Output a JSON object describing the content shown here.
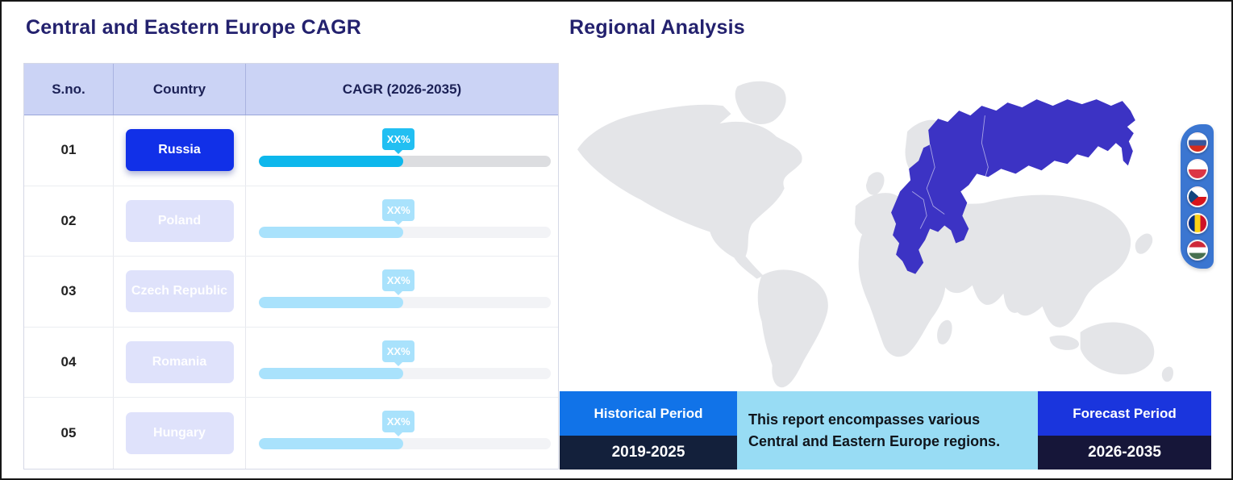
{
  "left_panel": {
    "title": "Central and Eastern Europe CAGR",
    "table": {
      "headers": [
        "S.no.",
        "Country",
        "CAGR (2026-2035)"
      ],
      "rows": [
        {
          "sno": "01",
          "country": "Russia",
          "value_label": "XX%",
          "state": "active"
        },
        {
          "sno": "02",
          "country": "Poland",
          "value_label": "XX%",
          "state": "inactive"
        },
        {
          "sno": "03",
          "country": "Czech Republic",
          "value_label": "XX%",
          "state": "inactive"
        },
        {
          "sno": "04",
          "country": "Romania",
          "value_label": "XX%",
          "state": "inactive"
        },
        {
          "sno": "05",
          "country": "Hungary",
          "value_label": "XX%",
          "state": "inactive"
        }
      ]
    }
  },
  "right_panel": {
    "title": "Regional Analysis",
    "map": {
      "highlighted_region": "Central and Eastern Europe (incl. Russia)",
      "land_color": "#e4e5e8",
      "highlight_color": "#3c33c4"
    },
    "flags_bar": {
      "background": "#3b76d1",
      "flags": [
        "Russia",
        "Poland",
        "Czech Republic",
        "Romania",
        "Hungary"
      ]
    },
    "bottom_bar": {
      "historical_label": "Historical Period",
      "historical_period": "2019-2025",
      "note": "This report encompasses various Central and Eastern Europe regions.",
      "forecast_label": "Forecast Period",
      "forecast_period": "2026-2035"
    }
  },
  "colors": {
    "title_text": "#23216e",
    "table_header_bg": "#cbd3f5",
    "table_header_text": "#1c2156",
    "active_button_bg": "#1130e8",
    "inactive_button_bg": "#dfe2fb",
    "active_bar_fill": "#0db7ec",
    "active_bar_track": "#dcdde0",
    "inactive_bar_fill": "#a9e2fc",
    "inactive_bar_track": "#f2f3f6",
    "tooltip_active_bg": "#22bff2",
    "historical_label_bg": "#1173e8",
    "forecast_label_bg": "#1a35dd",
    "period_years_bg": "#14203a",
    "note_bg": "#98dcf4",
    "flags_bar_bg": "#3b76d1"
  },
  "chart_data": {
    "type": "bar",
    "orientation": "horizontal",
    "title": "Central and Eastern Europe CAGR",
    "categories": [
      "Russia",
      "Poland",
      "Czech Republic",
      "Romania",
      "Hungary"
    ],
    "value_labels": [
      "XX%",
      "XX%",
      "XX%",
      "XX%",
      "XX%"
    ],
    "values_fill_percent": [
      49.5,
      49.5,
      49.5,
      49.5,
      49.5
    ],
    "xlabel": "CAGR (2026-2035)",
    "note": "CAGR values are masked as XX% in the figure; all bars drawn at equal length"
  }
}
